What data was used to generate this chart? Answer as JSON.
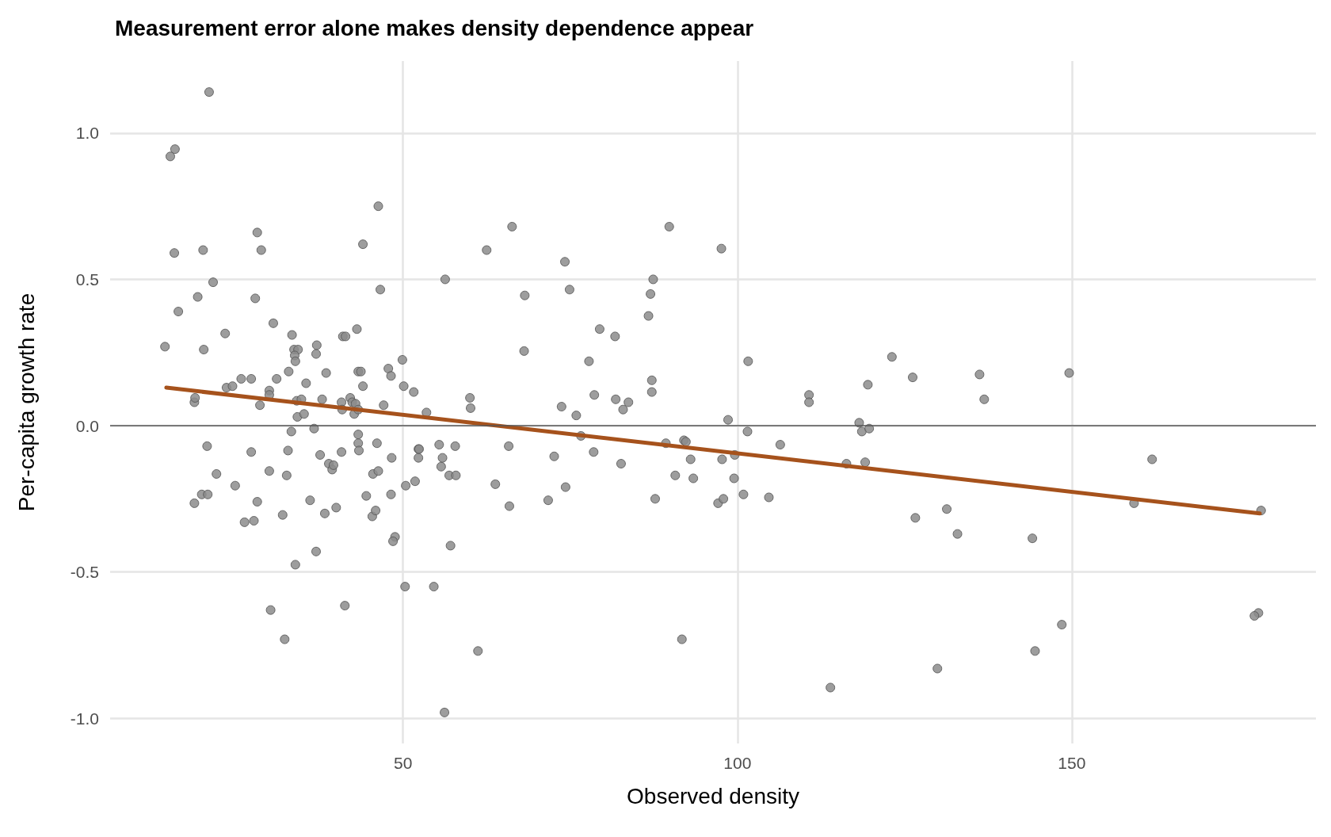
{
  "chart_data": {
    "type": "scatter",
    "title": "Measurement error alone makes density dependence appear",
    "xlabel": "Observed density",
    "ylabel": "Per-capita growth rate",
    "xlim": [
      6.2,
      186.5
    ],
    "xticks": [
      50,
      100,
      150
    ],
    "ylim": [
      -1.086,
      1.246
    ],
    "yticks": [
      {
        "value": -1,
        "label": "-1.0"
      },
      {
        "value": -0.5,
        "label": "-0.5"
      },
      {
        "value": 0,
        "label": "0.0"
      },
      {
        "value": 0.5,
        "label": "0.5"
      },
      {
        "value": 1,
        "label": "1.0"
      }
    ],
    "grid": true,
    "marker": "circle",
    "ref_lines": [
      {
        "axis": "y",
        "value": 0,
        "color": "#555555"
      }
    ],
    "series": [
      {
        "color": "#8c8c8c",
        "x": [
          14.4,
          15.2,
          15.9,
          15.8,
          16.4,
          21.0,
          20.1,
          19.3,
          21.6,
          20.2,
          23.4,
          18.8,
          18.9,
          20.7,
          22.1,
          19.9,
          20.8,
          18.8,
          23.6,
          24.5,
          25.8,
          27.3,
          24.9,
          27.3,
          26.3,
          27.7,
          28.2,
          28.2,
          28.8,
          27.9,
          28.6,
          30.0,
          30.0,
          30.6,
          31.1,
          30.0,
          32.0,
          32.6,
          30.2,
          32.3,
          33.9,
          32.8,
          33.3,
          32.9,
          33.4,
          33.7,
          34.3,
          33.8,
          33.9,
          34.1,
          34.2,
          34.8,
          35.2,
          35.5,
          36.1,
          36.7,
          37.1,
          37.0,
          37.0,
          37.6,
          37.9,
          38.3,
          38.5,
          38.9,
          39.4,
          39.6,
          40.0,
          40.8,
          40.8,
          40.9,
          41.0,
          41.4,
          41.3,
          42.1,
          42.4,
          42.9,
          43.1,
          42.7,
          43.3,
          43.3,
          43.7,
          43.3,
          43.4,
          43.3,
          44.0,
          44.0,
          44.5,
          45.4,
          45.5,
          45.9,
          46.3,
          46.1,
          46.3,
          46.6,
          47.1,
          47.8,
          48.2,
          48.2,
          48.3,
          48.8,
          48.5,
          49.9,
          50.1,
          50.3,
          50.4,
          51.6,
          51.8,
          52.3,
          52.3,
          52.4,
          53.5,
          54.6,
          55.4,
          55.7,
          55.9,
          56.3,
          56.2,
          57.1,
          56.9,
          57.8,
          57.9,
          60.0,
          60.1,
          61.2,
          62.5,
          63.8,
          65.8,
          65.9,
          66.3,
          68.1,
          68.2,
          71.7,
          72.6,
          73.7,
          74.2,
          74.3,
          74.9,
          75.9,
          76.6,
          77.8,
          78.5,
          78.6,
          79.4,
          81.7,
          81.8,
          82.6,
          82.9,
          83.7,
          86.7,
          87.0,
          87.4,
          87.2,
          87.2,
          87.7,
          89.3,
          89.8,
          90.7,
          91.7,
          92.0,
          92.3,
          93.0,
          93.4,
          97.1,
          97.7,
          97.6,
          97.9,
          98.6,
          99.5,
          99.6,
          100.9,
          101.5,
          101.6,
          104.7,
          106.4,
          110.7,
          110.7,
          113.9,
          116.3,
          118.2,
          118.6,
          119.5,
          119.7,
          119.1,
          123.1,
          126.2,
          126.6,
          129.9,
          131.3,
          132.9,
          136.2,
          136.9,
          144.1,
          144.5,
          148.5,
          149.6,
          159.3,
          162.0,
          177.9,
          178.3,
          177.3
        ],
        "values": [
          0.27,
          0.92,
          0.945,
          0.59,
          0.39,
          1.14,
          0.6,
          0.44,
          0.49,
          0.26,
          0.315,
          0.08,
          0.095,
          -0.07,
          -0.165,
          -0.235,
          -0.235,
          -0.265,
          0.13,
          0.135,
          0.16,
          0.16,
          -0.205,
          -0.09,
          -0.33,
          -0.325,
          -0.26,
          0.66,
          0.6,
          0.435,
          0.07,
          0.12,
          0.105,
          0.35,
          0.16,
          -0.155,
          -0.305,
          -0.17,
          -0.63,
          -0.73,
          -0.475,
          -0.085,
          -0.02,
          0.185,
          0.31,
          0.26,
          0.26,
          0.24,
          0.22,
          0.085,
          0.03,
          0.09,
          0.04,
          0.145,
          -0.255,
          -0.01,
          0.275,
          0.245,
          -0.43,
          -0.1,
          0.09,
          -0.3,
          0.18,
          -0.13,
          -0.15,
          -0.135,
          -0.28,
          -0.09,
          0.08,
          0.055,
          0.305,
          0.305,
          -0.615,
          0.095,
          0.08,
          0.075,
          0.33,
          0.04,
          0.055,
          0.185,
          0.185,
          -0.06,
          -0.085,
          -0.03,
          0.62,
          0.135,
          -0.24,
          -0.31,
          -0.165,
          -0.29,
          -0.155,
          -0.06,
          0.75,
          0.465,
          0.07,
          0.195,
          -0.235,
          0.17,
          -0.11,
          -0.38,
          -0.395,
          0.225,
          0.135,
          -0.55,
          -0.205,
          0.115,
          -0.19,
          -0.08,
          -0.11,
          -0.08,
          0.045,
          -0.55,
          -0.065,
          -0.14,
          -0.11,
          0.5,
          -0.98,
          -0.41,
          -0.17,
          -0.07,
          -0.17,
          0.095,
          0.06,
          -0.77,
          0.6,
          -0.2,
          -0.07,
          -0.275,
          0.68,
          0.255,
          0.445,
          -0.255,
          -0.105,
          0.065,
          0.56,
          -0.21,
          0.465,
          0.035,
          -0.035,
          0.22,
          -0.09,
          0.105,
          0.33,
          0.305,
          0.09,
          -0.13,
          0.055,
          0.08,
          0.375,
          0.45,
          0.5,
          0.155,
          0.115,
          -0.25,
          -0.06,
          0.68,
          -0.17,
          -0.73,
          -0.05,
          -0.055,
          -0.115,
          -0.18,
          -0.265,
          -0.115,
          0.605,
          -0.25,
          0.02,
          -0.18,
          -0.1,
          -0.235,
          -0.02,
          0.22,
          -0.245,
          -0.065,
          0.105,
          0.08,
          -0.895,
          -0.13,
          0.01,
          -0.02,
          0.14,
          -0.01,
          -0.125,
          0.235,
          0.165,
          -0.315,
          -0.83,
          -0.285,
          -0.37,
          0.175,
          0.09,
          -0.385,
          -0.77,
          -0.68,
          0.18,
          -0.265,
          -0.115,
          -0.64,
          -0.29,
          -0.65
        ]
      },
      {
        "type": "line",
        "color": "#a6521c",
        "x": [
          14.6,
          178.1
        ],
        "values": [
          0.13,
          -0.3
        ],
        "marker": "none"
      }
    ]
  }
}
